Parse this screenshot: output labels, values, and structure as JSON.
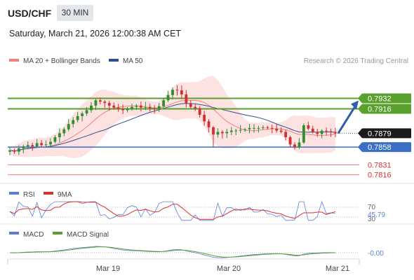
{
  "header": {
    "symbol": "USD/CHF",
    "timeframe": "30 MIN",
    "datetime": "Saturday, March 21, 2026 12:00:38 AM CET"
  },
  "colors": {
    "ma20": "#f08080",
    "bollinger_fill": "#fde2e2",
    "ma50": "#2f4f8f",
    "up_candle": "#2f8f2f",
    "down_candle": "#d23030",
    "resistance": "#5aa02c",
    "support": "#3a6fc4",
    "lower_levels": "#f08080",
    "rsi": "#5b7fd6",
    "rsi_ma": "#d93030",
    "macd": "#5b7fd6",
    "macd_signal": "#5aa02c",
    "arrow": "#2f5fa8"
  },
  "chart_data": [
    {
      "type": "candlestick",
      "symbol": "USD/CHF",
      "legend": [
        {
          "label": "MA 20 + Bollinger Bands",
          "color": "#f08080"
        },
        {
          "label": "MA 50",
          "color": "#2f4f8f"
        }
      ],
      "attribution": "Research © 2026 Trading Central",
      "ylim": [
        0.7805,
        0.7975
      ],
      "close_series": [
        0.7853,
        0.7851,
        0.7856,
        0.7859,
        0.7861,
        0.7859,
        0.7864,
        0.7861,
        0.7862,
        0.7866,
        0.7873,
        0.7879,
        0.7885,
        0.7893,
        0.7899,
        0.7905,
        0.7909,
        0.7914,
        0.7921,
        0.7929,
        0.7927,
        0.7925,
        0.7921,
        0.7918,
        0.7916,
        0.7914,
        0.7916,
        0.7919,
        0.7921,
        0.7918,
        0.7919,
        0.7917,
        0.7916,
        0.792,
        0.7929,
        0.7937,
        0.7945,
        0.7944,
        0.7938,
        0.7924,
        0.7919,
        0.7917,
        0.7907,
        0.7897,
        0.7888,
        0.7877,
        0.7881,
        0.7879,
        0.7881,
        0.7883,
        0.7883,
        0.7884,
        0.7885,
        0.7887,
        0.7887,
        0.7887,
        0.7888,
        0.7887,
        0.7886,
        0.7883,
        0.7881,
        0.7873,
        0.7862,
        0.7858,
        0.7865,
        0.7891,
        0.7886,
        0.7881,
        0.7878,
        0.7883,
        0.7882,
        0.7881,
        0.7879
      ],
      "support_resistance": [
        {
          "label": "0.7932",
          "value": 0.7932,
          "kind": "resistance"
        },
        {
          "label": "0.7916",
          "value": 0.7916,
          "kind": "resistance"
        },
        {
          "label": "0.7879",
          "value": 0.7879,
          "kind": "last"
        },
        {
          "label": "0.7858",
          "value": 0.7858,
          "kind": "support"
        },
        {
          "label": "0.7831",
          "value": 0.7831,
          "kind": "support"
        },
        {
          "label": "0.7816",
          "value": 0.7816,
          "kind": "support"
        }
      ],
      "x_ticks": [
        "Mar 19",
        "Mar 20",
        "Mar 21"
      ],
      "grid": false
    },
    {
      "type": "line",
      "legend": [
        {
          "label": "RSI",
          "color": "#5b7fd6"
        },
        {
          "label": "9MA",
          "color": "#d93030"
        }
      ],
      "ylim": [
        25,
        80
      ],
      "y_ticks": [
        "70",
        "30"
      ],
      "rsi_last_label": "45.79",
      "rsi_last": 45.79
    },
    {
      "type": "line",
      "legend": [
        {
          "label": "MACD",
          "color": "#5b7fd6"
        },
        {
          "label": "MACD Signal",
          "color": "#5aa02c"
        }
      ],
      "macd_last_label": "-0.00",
      "macd_last": 0.0
    }
  ]
}
